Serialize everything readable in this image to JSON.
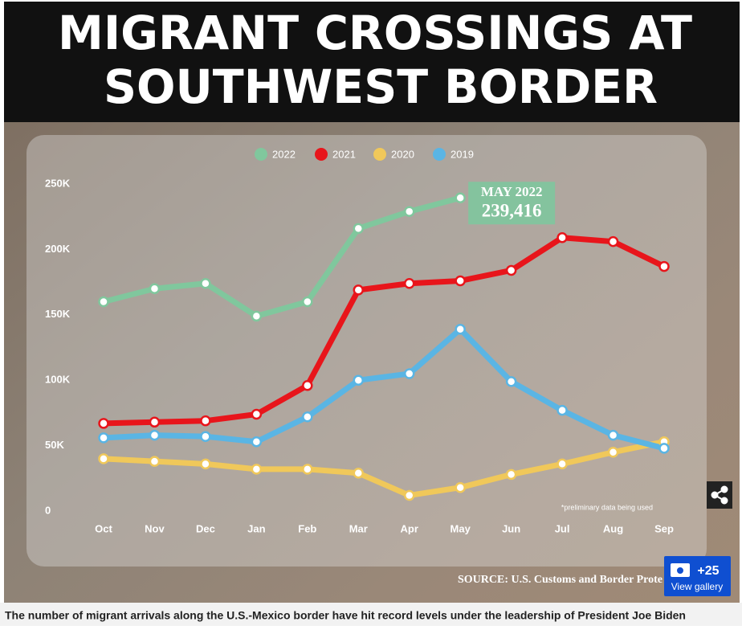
{
  "title_lines": [
    "MIGRANT CROSSINGS AT",
    "SOUTHWEST BORDER"
  ],
  "chart_data": {
    "type": "line",
    "categories": [
      "Oct",
      "Nov",
      "Dec",
      "Jan",
      "Feb",
      "Mar",
      "Apr",
      "May",
      "Jun",
      "Jul",
      "Aug",
      "Sep"
    ],
    "series": [
      {
        "name": "2022",
        "color": "#80c79d",
        "values": [
          160000,
          170000,
          174000,
          149000,
          160000,
          216000,
          229000,
          239416,
          null,
          null,
          null,
          null
        ],
        "value_labels": [
          null,
          null,
          null,
          null,
          null,
          null,
          null,
          "239,416"
        ]
      },
      {
        "name": "2021",
        "color": "#e8151b",
        "values": [
          67000,
          68000,
          69000,
          74000,
          96000,
          169000,
          174000,
          176000,
          184000,
          209000,
          206000,
          187000
        ]
      },
      {
        "name": "2020",
        "color": "#f0c85a",
        "values": [
          40000,
          38000,
          36000,
          32000,
          32000,
          29000,
          12000,
          18000,
          28000,
          36000,
          45000,
          53000
        ]
      },
      {
        "name": "2019",
        "color": "#5ab5e4",
        "values": [
          56000,
          58000,
          57000,
          53000,
          72000,
          100000,
          105000,
          139000,
          99000,
          77000,
          58000,
          48000
        ]
      }
    ],
    "annotation": "MAY 2022",
    "ylim": [
      0,
      250000
    ],
    "yticks": [
      0,
      {
        "value": 50000,
        "label": "50K"
      },
      {
        "value": 100000,
        "label": "100K"
      },
      {
        "value": 150000,
        "label": "150K"
      },
      {
        "value": 200000,
        "label": "200K"
      },
      {
        "value": 250000,
        "label": "250K"
      }
    ],
    "note": "*preliminary data being used",
    "source": "SOURCE: U.S. Customs and Border Prote",
    "legend": "top"
  },
  "gallery": {
    "count": "+25",
    "label": "View gallery"
  },
  "caption": "The number of migrant arrivals along the U.S.-Mexico border have hit record levels under the leadership of President Joe Biden"
}
